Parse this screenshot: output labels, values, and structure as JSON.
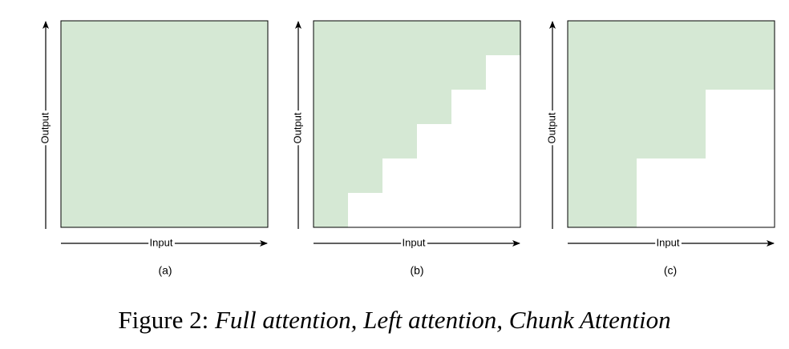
{
  "colors": {
    "attention_fill": "#d5e8d4",
    "frame": "#000000"
  },
  "panels": [
    {
      "id": "a",
      "label": "(a)",
      "pattern": "full attention: every output attends to all inputs",
      "x_axis_label": "Input",
      "y_axis_label": "Output"
    },
    {
      "id": "b",
      "label": "(b)",
      "pattern": "left attention: staircase, 6 steps",
      "steps": 6,
      "x_axis_label": "Input",
      "y_axis_label": "Output"
    },
    {
      "id": "c",
      "label": "(c)",
      "pattern": "chunk attention: block staircase, 3 chunks",
      "chunks": 3,
      "x_axis_label": "Input",
      "y_axis_label": "Output"
    }
  ],
  "caption": {
    "prefix": "Figure 2: ",
    "text": "Full attention, Left attention, Chunk Attention"
  }
}
